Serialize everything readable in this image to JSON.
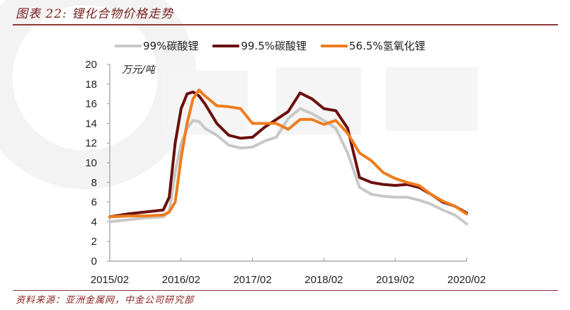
{
  "header": {
    "title": "图表 22: 锂化合物价格走势"
  },
  "footer": {
    "source": "资料来源：亚洲金属网，中金公司研究部"
  },
  "chart": {
    "unit_label": "万元/吨",
    "legend": [
      {
        "label": "99%碳酸锂",
        "color": "#c8c8c8"
      },
      {
        "label": "99.5%碳酸锂",
        "color": "#6b0f0f"
      },
      {
        "label": "56.5%氢氧化锂",
        "color": "#ee7d1e"
      }
    ],
    "y_ticks": [
      "0",
      "2",
      "4",
      "6",
      "8",
      "10",
      "12",
      "14",
      "16",
      "18",
      "20"
    ],
    "x_ticks": [
      "2015/02",
      "2016/02",
      "2017/02",
      "2018/02",
      "2019/02",
      "2020/02"
    ]
  },
  "chart_data": {
    "type": "line",
    "title": "图表 22: 锂化合物价格走势",
    "xlabel": "",
    "ylabel": "万元/吨",
    "ylim": [
      0,
      20
    ],
    "x_tick_labels": [
      "2015/02",
      "2016/02",
      "2017/02",
      "2018/02",
      "2019/02",
      "2020/02"
    ],
    "y_tick_labels": [
      0,
      2,
      4,
      6,
      8,
      10,
      12,
      14,
      16,
      18,
      20
    ],
    "grid": false,
    "legend_position": "top",
    "x": [
      "2015/02",
      "2015/05",
      "2015/08",
      "2015/11",
      "2015/12",
      "2016/01",
      "2016/02",
      "2016/03",
      "2016/04",
      "2016/05",
      "2016/06",
      "2016/08",
      "2016/10",
      "2016/12",
      "2017/02",
      "2017/04",
      "2017/06",
      "2017/08",
      "2017/10",
      "2017/12",
      "2018/02",
      "2018/04",
      "2018/06",
      "2018/08",
      "2018/10",
      "2018/12",
      "2019/02",
      "2019/04",
      "2019/06",
      "2019/08",
      "2019/10",
      "2019/12",
      "2020/02"
    ],
    "series": [
      {
        "name": "99%碳酸锂",
        "color": "#c8c8c8",
        "values": [
          4.0,
          4.2,
          4.4,
          4.5,
          5.0,
          9.0,
          12.0,
          13.5,
          14.3,
          14.2,
          13.5,
          12.8,
          11.8,
          11.5,
          11.6,
          12.2,
          12.6,
          14.5,
          15.5,
          15.0,
          14.3,
          13.5,
          11.0,
          7.5,
          6.8,
          6.6,
          6.5,
          6.5,
          6.2,
          5.8,
          5.2,
          4.7,
          3.8
        ]
      },
      {
        "name": "99.5%碳酸锂",
        "color": "#6b0f0f",
        "values": [
          4.5,
          4.8,
          5.0,
          5.2,
          6.5,
          12.0,
          15.5,
          17.0,
          17.2,
          16.8,
          16.0,
          14.0,
          12.8,
          12.5,
          12.6,
          13.6,
          14.4,
          15.2,
          17.1,
          16.5,
          15.5,
          15.3,
          13.5,
          8.5,
          8.0,
          7.8,
          7.7,
          7.8,
          7.5,
          6.8,
          6.0,
          5.6,
          4.9
        ]
      },
      {
        "name": "56.5%氢氧化锂",
        "color": "#ee7d1e",
        "values": [
          4.5,
          4.6,
          4.6,
          4.7,
          5.0,
          6.0,
          10.5,
          14.0,
          16.5,
          17.4,
          16.8,
          15.8,
          15.7,
          15.5,
          14.0,
          14.0,
          14.0,
          13.4,
          14.4,
          14.4,
          13.9,
          14.3,
          13.0,
          11.0,
          10.2,
          9.0,
          8.4,
          8.0,
          7.7,
          6.8,
          6.1,
          5.6,
          4.8
        ]
      }
    ]
  }
}
